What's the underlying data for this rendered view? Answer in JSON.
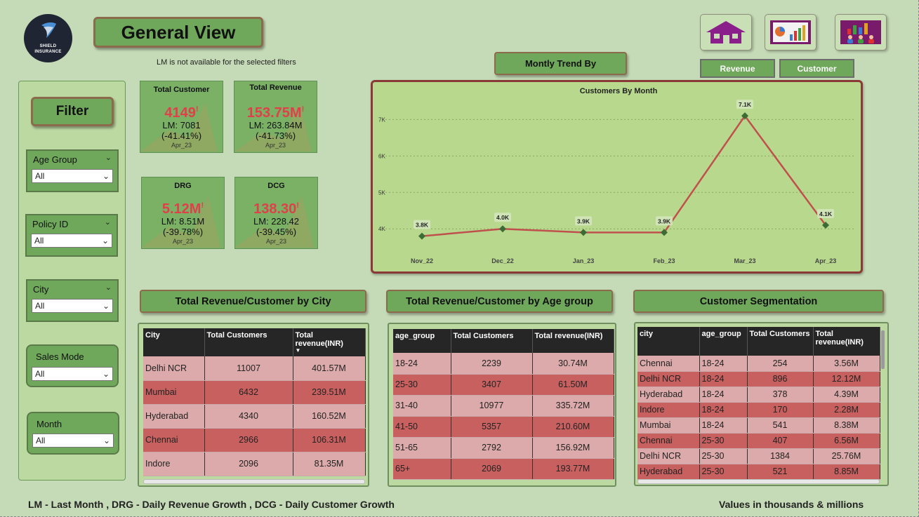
{
  "logo": {
    "line1": "SHIELD",
    "line2": "INSURANCE"
  },
  "header": {
    "title": "General View",
    "lm_note": "LM is not available for the selected filters"
  },
  "nav": [
    {
      "name": "home-icon"
    },
    {
      "name": "report-icon"
    },
    {
      "name": "people-chart-icon"
    }
  ],
  "trend": {
    "title": "Montly Trend By",
    "toggles": [
      {
        "label": "Revenue"
      },
      {
        "label": "Customer"
      }
    ]
  },
  "filter": {
    "title": "Filter",
    "slicers": [
      {
        "label": "Age Group",
        "value": "All"
      },
      {
        "label": "Policy ID",
        "value": "All"
      },
      {
        "label": "City",
        "value": "All"
      },
      {
        "label": "Sales Mode",
        "value": "All"
      },
      {
        "label": "Month",
        "value": "All"
      }
    ]
  },
  "kpis": [
    {
      "title": "Total Customer",
      "value": "4149",
      "lm": "LM: 7081",
      "change": "(-41.41%)",
      "date": "Apr_23"
    },
    {
      "title": "Total Revenue",
      "value": "153.75M",
      "lm": "LM: 263.84M",
      "change": "(-41.73%)",
      "date": "Apr_23"
    },
    {
      "title": "DRG",
      "value": "5.12M",
      "lm": "LM: 8.51M",
      "change": "(-39.78%)",
      "date": "Apr_23"
    },
    {
      "title": "DCG",
      "value": "138.30",
      "lm": "LM: 228.42",
      "change": "(-39.45%)",
      "date": "Apr_23"
    }
  ],
  "chart_data": {
    "type": "line",
    "title": "Customers By Month",
    "categories": [
      "Nov_22",
      "Dec_22",
      "Jan_23",
      "Feb_23",
      "Mar_23",
      "Apr_23"
    ],
    "values": [
      3.8,
      4.0,
      3.9,
      3.9,
      7.1,
      4.1
    ],
    "data_labels": [
      "3.8K",
      "4.0K",
      "3.9K",
      "3.9K",
      "7.1K",
      "4.1K"
    ],
    "y_ticks": [
      "4K",
      "5K",
      "6K",
      "7K"
    ],
    "y_tick_values": [
      4,
      5,
      6,
      7
    ],
    "ylim": [
      3.6,
      7.45
    ],
    "grid": true,
    "colors": {
      "line": "#c0504d",
      "marker": "#3d6b35"
    }
  },
  "sections": {
    "city_title": "Total Revenue/Customer by City",
    "age_title": "Total Revenue/Customer by Age group",
    "seg_title": "Customer Segmentation"
  },
  "city_table": {
    "headers": [
      "City",
      "Total Customers",
      "Total revenue(INR)"
    ],
    "rows": [
      [
        "Delhi NCR",
        "11007",
        "401.57M"
      ],
      [
        "Mumbai",
        "6432",
        "239.51M"
      ],
      [
        "Hyderabad",
        "4340",
        "160.52M"
      ],
      [
        "Chennai",
        "2966",
        "106.31M"
      ],
      [
        "Indore",
        "2096",
        "81.35M"
      ]
    ]
  },
  "age_table": {
    "headers": [
      "age_group",
      "Total Customers",
      "Total revenue(INR)"
    ],
    "rows": [
      [
        "18-24",
        "2239",
        "30.74M"
      ],
      [
        "25-30",
        "3407",
        "61.50M"
      ],
      [
        "31-40",
        "10977",
        "335.72M"
      ],
      [
        "41-50",
        "5357",
        "210.60M"
      ],
      [
        "51-65",
        "2792",
        "156.92M"
      ],
      [
        "65+",
        "2069",
        "193.77M"
      ]
    ]
  },
  "seg_table": {
    "headers": [
      "city",
      "age_group",
      "Total Customers",
      "Total revenue(INR)"
    ],
    "rows": [
      [
        "Chennai",
        "18-24",
        "254",
        "3.56M"
      ],
      [
        "Delhi NCR",
        "18-24",
        "896",
        "12.12M"
      ],
      [
        "Hyderabad",
        "18-24",
        "378",
        "4.39M"
      ],
      [
        "Indore",
        "18-24",
        "170",
        "2.28M"
      ],
      [
        "Mumbai",
        "18-24",
        "541",
        "8.38M"
      ],
      [
        "Chennai",
        "25-30",
        "407",
        "6.56M"
      ],
      [
        "Delhi NCR",
        "25-30",
        "1384",
        "25.76M"
      ],
      [
        "Hyderabad",
        "25-30",
        "521",
        "8.85M"
      ]
    ]
  },
  "footer": {
    "left": "LM - Last Month , DRG - Daily Revenue Growth , DCG - Daily Customer Growth",
    "right": "Values in thousands & millions"
  }
}
